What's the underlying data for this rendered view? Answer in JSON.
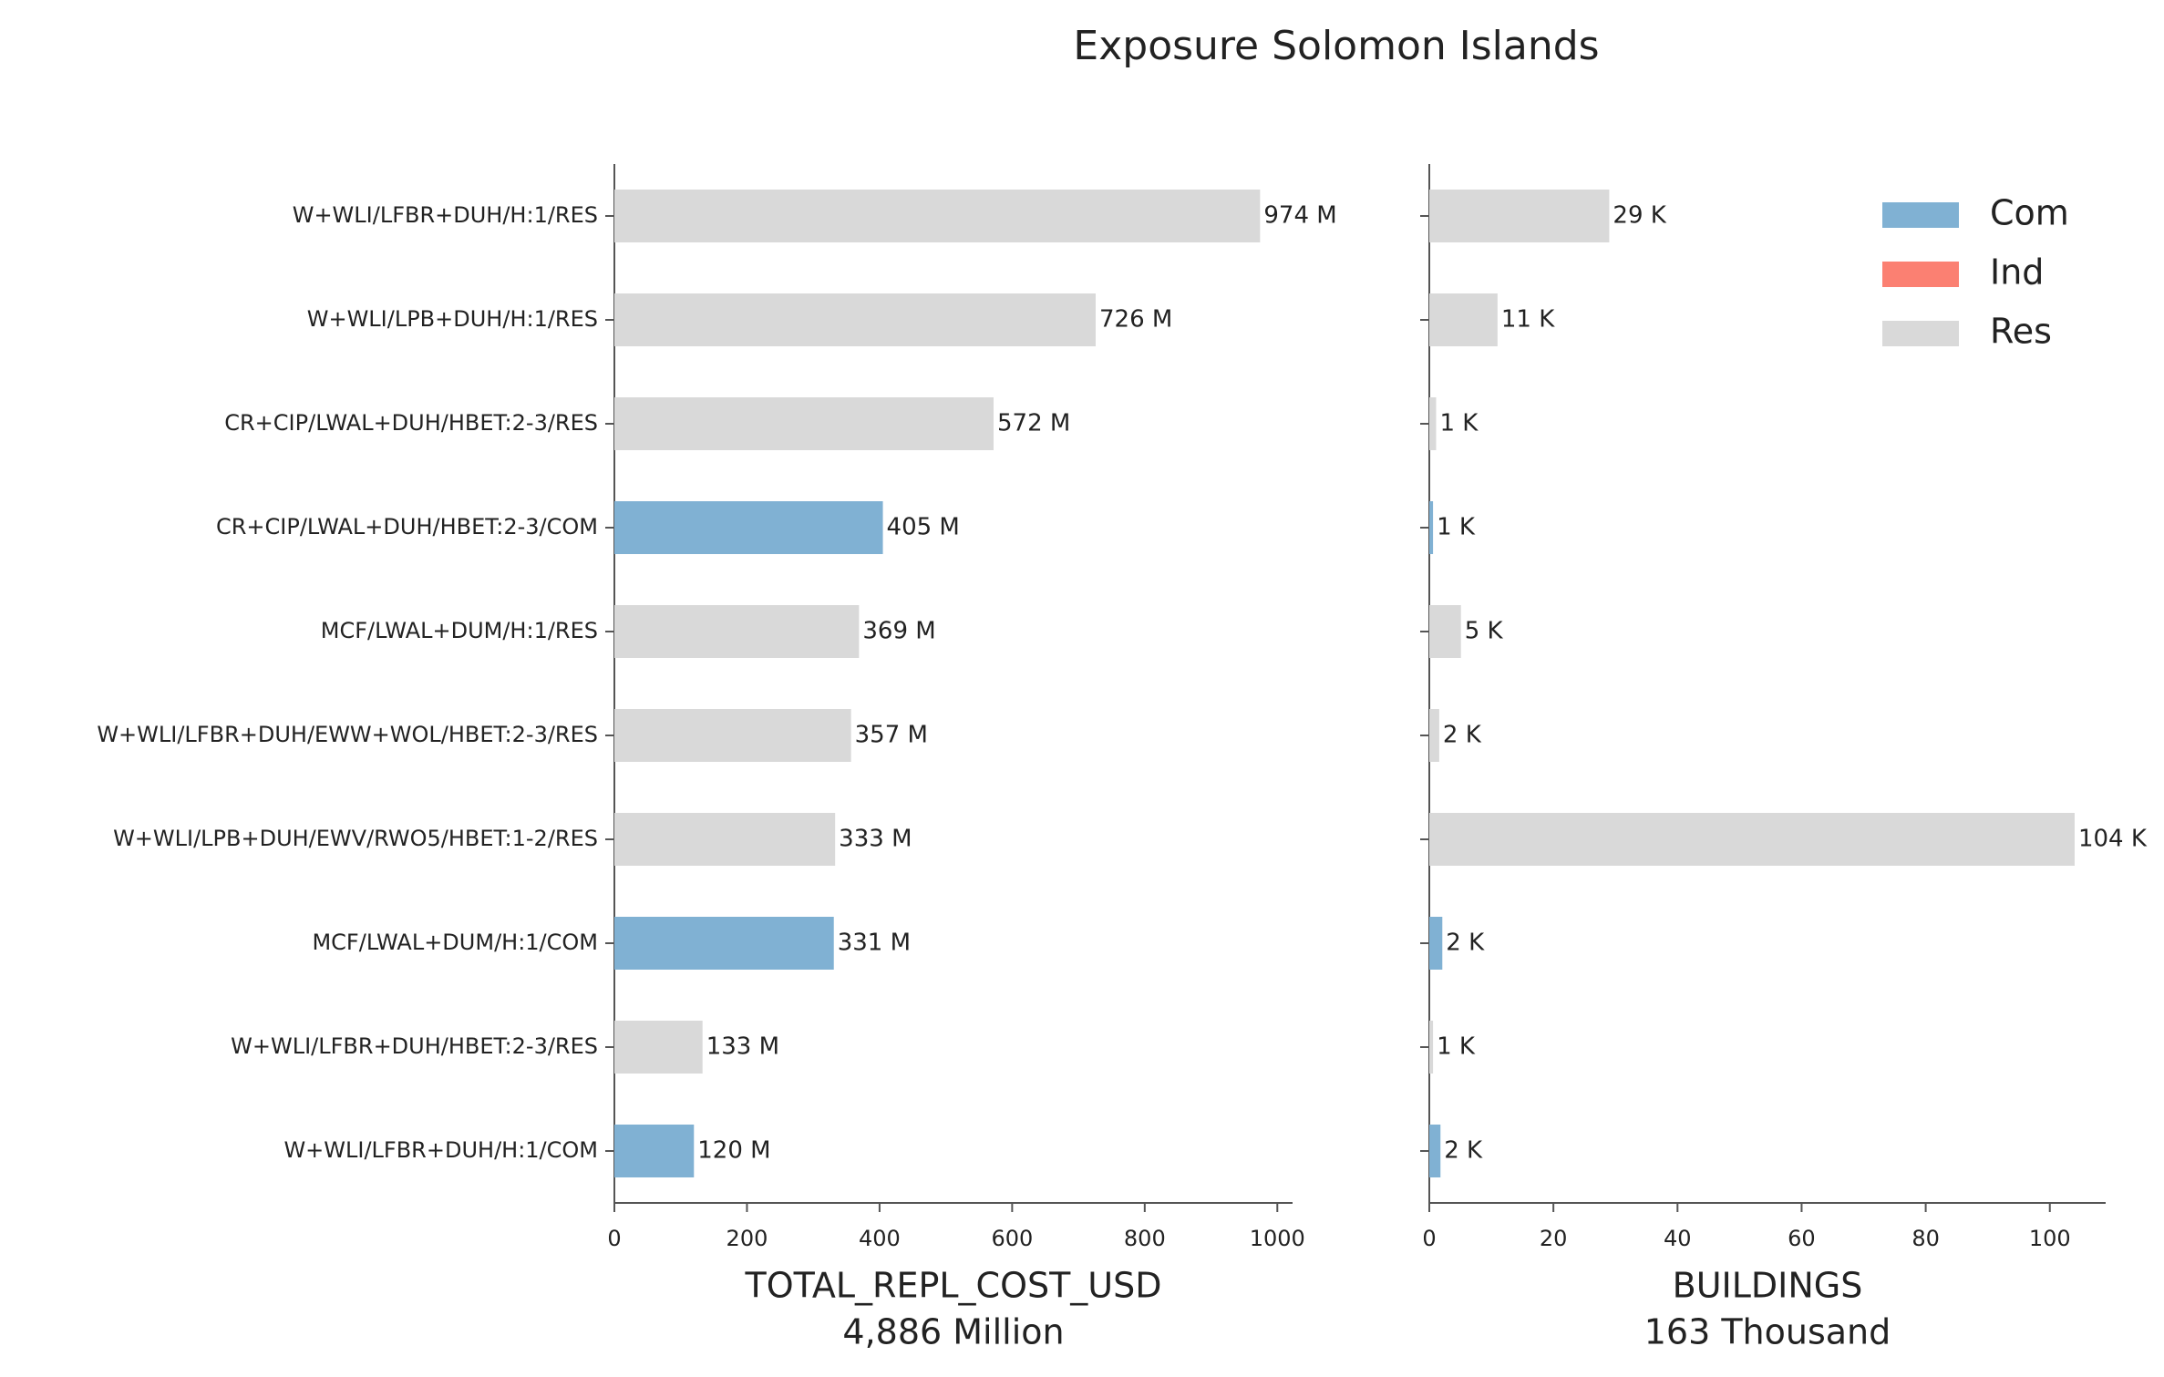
{
  "title": "Exposure Solomon Islands",
  "legend": {
    "loc": "upper right",
    "items": [
      {
        "name": "Com",
        "color": "#80b1d3"
      },
      {
        "name": "Ind",
        "color": "#fb8072"
      },
      {
        "name": "Res",
        "color": "#d9d9d9"
      }
    ]
  },
  "chart_data": [
    {
      "type": "bar",
      "orientation": "horizontal",
      "categories": [
        "W+WLI/LFBR+DUH/H:1/RES",
        "W+WLI/LPB+DUH/H:1/RES",
        "CR+CIP/LWAL+DUH/HBET:2-3/RES",
        "CR+CIP/LWAL+DUH/HBET:2-3/COM",
        "MCF/LWAL+DUM/H:1/RES",
        "W+WLI/LFBR+DUH/EWW+WOL/HBET:2-3/RES",
        "W+WLI/LPB+DUH/EWV/RWO5/HBET:1-2/RES",
        "MCF/LWAL+DUM/H:1/COM",
        "W+WLI/LFBR+DUH/HBET:2-3/RES",
        "W+WLI/LFBR+DUH/H:1/COM"
      ],
      "values": [
        974,
        726,
        572,
        405,
        369,
        357,
        333,
        331,
        133,
        120
      ],
      "value_labels": [
        "974 M",
        "726 M",
        "572 M",
        "405 M",
        "369 M",
        "357 M",
        "333 M",
        "331 M",
        "133 M",
        "120 M"
      ],
      "colors": [
        "#d9d9d9",
        "#d9d9d9",
        "#d9d9d9",
        "#80b1d3",
        "#d9d9d9",
        "#d9d9d9",
        "#d9d9d9",
        "#80b1d3",
        "#d9d9d9",
        "#80b1d3"
      ],
      "xlim": [
        0,
        1023
      ],
      "xticks": [
        0,
        200,
        400,
        600,
        800,
        1000
      ],
      "xlabel": "TOTAL_REPL_COST_USD",
      "total_label": "4,886 Million"
    },
    {
      "type": "bar",
      "orientation": "horizontal",
      "values": [
        29,
        11,
        1.1,
        0.6,
        5.1,
        1.6,
        104,
        2.1,
        0.6,
        1.8
      ],
      "value_labels": [
        "29 K",
        "11 K",
        "1 K",
        "1 K",
        "5 K",
        "2 K",
        "104 K",
        "2 K",
        "1 K",
        "2 K"
      ],
      "colors": [
        "#d9d9d9",
        "#d9d9d9",
        "#d9d9d9",
        "#80b1d3",
        "#d9d9d9",
        "#d9d9d9",
        "#d9d9d9",
        "#80b1d3",
        "#d9d9d9",
        "#80b1d3"
      ],
      "xlim": [
        0,
        109
      ],
      "xticks": [
        0,
        20,
        40,
        60,
        80,
        100
      ],
      "xlabel": "BUILDINGS",
      "total_label": "163 Thousand"
    }
  ]
}
